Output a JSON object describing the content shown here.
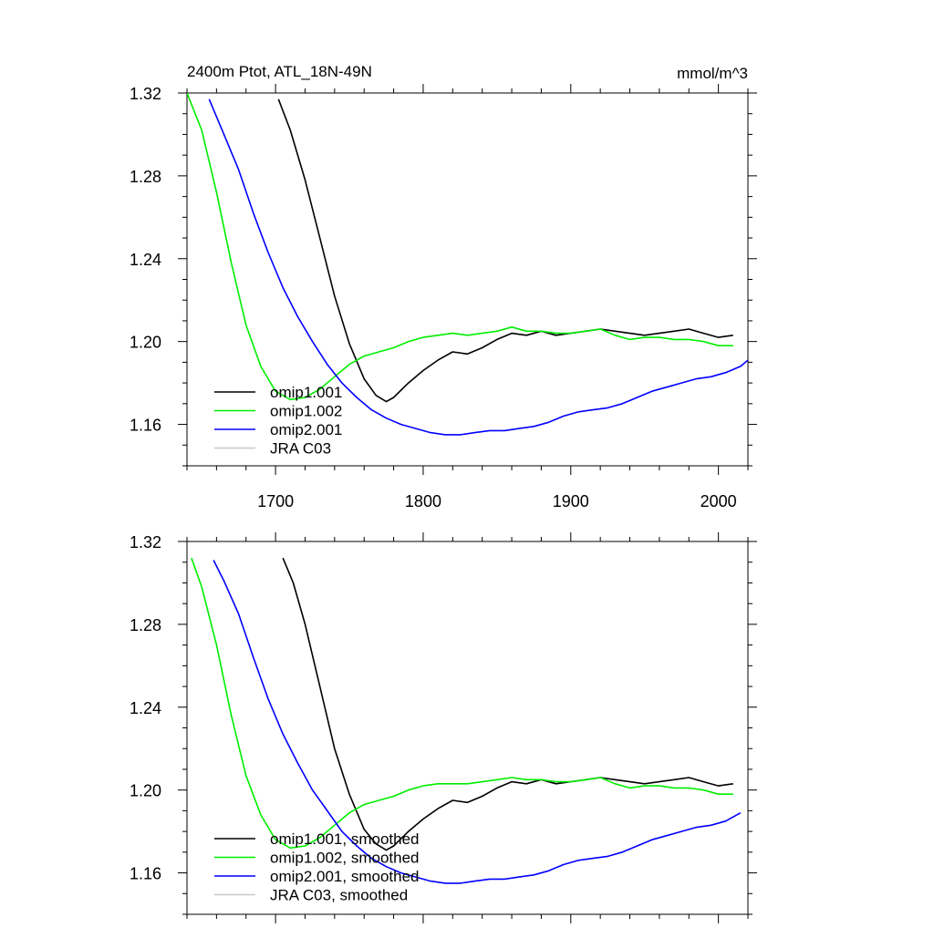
{
  "chart_data": [
    {
      "type": "line",
      "title": "2400m Ptot, ATL_18N-49N",
      "units": "mmol/m^3",
      "xlim": [
        1640,
        2020
      ],
      "ylim": [
        1.14,
        1.32
      ],
      "x_ticks": [
        1700,
        1800,
        1900,
        2000
      ],
      "y_ticks": [
        1.32,
        1.28,
        1.24,
        1.2,
        1.16
      ],
      "y_tick_labels": [
        "1.32",
        "1.28",
        "1.24",
        "1.20",
        "1.16"
      ],
      "grid": false,
      "legend_position": "bottom-left",
      "legend": [
        "omip1.001",
        "omip1.002",
        "omip2.001",
        "JRA C03"
      ],
      "series": [
        {
          "name": "omip1.001",
          "color": "#000000",
          "x": [
            1702,
            1710,
            1720,
            1730,
            1740,
            1750,
            1760,
            1768,
            1775,
            1780,
            1790,
            1800,
            1810,
            1820,
            1830,
            1840,
            1850,
            1860,
            1870,
            1880,
            1890,
            1900,
            1910,
            1920,
            1930,
            1940,
            1950,
            1960,
            1970,
            1980,
            1990,
            2000,
            2010
          ],
          "y": [
            1.317,
            1.302,
            1.278,
            1.25,
            1.222,
            1.199,
            1.182,
            1.174,
            1.171,
            1.173,
            1.18,
            1.186,
            1.191,
            1.195,
            1.194,
            1.197,
            1.201,
            1.204,
            1.203,
            1.205,
            1.203,
            1.204,
            1.205,
            1.206,
            1.205,
            1.204,
            1.203,
            1.204,
            1.205,
            1.206,
            1.204,
            1.202,
            1.203
          ]
        },
        {
          "name": "omip1.002",
          "color": "#00ee00",
          "x": [
            1640,
            1650,
            1660,
            1670,
            1680,
            1690,
            1700,
            1710,
            1720,
            1730,
            1740,
            1750,
            1760,
            1770,
            1780,
            1790,
            1800,
            1810,
            1820,
            1830,
            1840,
            1850,
            1860,
            1870,
            1880,
            1890,
            1900,
            1910,
            1920,
            1930,
            1940,
            1950,
            1960,
            1970,
            1980,
            1990,
            2000,
            2010
          ],
          "y": [
            1.32,
            1.302,
            1.272,
            1.238,
            1.208,
            1.188,
            1.176,
            1.172,
            1.173,
            1.177,
            1.183,
            1.189,
            1.193,
            1.195,
            1.197,
            1.2,
            1.202,
            1.203,
            1.204,
            1.203,
            1.204,
            1.205,
            1.207,
            1.205,
            1.205,
            1.204,
            1.204,
            1.205,
            1.206,
            1.203,
            1.201,
            1.202,
            1.202,
            1.201,
            1.201,
            1.2,
            1.198,
            1.198
          ]
        },
        {
          "name": "omip2.001",
          "color": "#0000ff",
          "x": [
            1655,
            1665,
            1675,
            1685,
            1695,
            1705,
            1715,
            1725,
            1735,
            1745,
            1755,
            1765,
            1775,
            1785,
            1795,
            1805,
            1815,
            1825,
            1835,
            1845,
            1855,
            1865,
            1875,
            1885,
            1895,
            1905,
            1915,
            1925,
            1935,
            1945,
            1955,
            1965,
            1975,
            1985,
            1995,
            2005,
            2015,
            2020
          ],
          "y": [
            1.317,
            1.3,
            1.283,
            1.262,
            1.243,
            1.226,
            1.212,
            1.2,
            1.189,
            1.18,
            1.173,
            1.167,
            1.163,
            1.16,
            1.158,
            1.156,
            1.155,
            1.155,
            1.156,
            1.157,
            1.157,
            1.158,
            1.159,
            1.161,
            1.164,
            1.166,
            1.167,
            1.168,
            1.17,
            1.173,
            1.176,
            1.178,
            1.18,
            1.182,
            1.183,
            1.185,
            1.188,
            1.191
          ]
        }
      ]
    },
    {
      "type": "line",
      "xlim": [
        1640,
        2020
      ],
      "ylim": [
        1.14,
        1.32
      ],
      "x_ticks": [
        1700,
        1800,
        1900,
        2000
      ],
      "y_ticks": [
        1.32,
        1.28,
        1.24,
        1.2,
        1.16
      ],
      "y_tick_labels": [
        "1.32",
        "1.28",
        "1.24",
        "1.20",
        "1.16"
      ],
      "grid": false,
      "legend_position": "bottom-left",
      "legend": [
        "omip1.001, smoothed",
        "omip1.002, smoothed",
        "omip2.001, smoothed",
        "JRA C03, smoothed"
      ],
      "series": [
        {
          "name": "omip1.001, smoothed",
          "color": "#000000",
          "x": [
            1705,
            1712,
            1720,
            1730,
            1740,
            1750,
            1760,
            1768,
            1775,
            1780,
            1790,
            1800,
            1810,
            1820,
            1830,
            1840,
            1850,
            1860,
            1870,
            1880,
            1890,
            1900,
            1910,
            1920,
            1930,
            1940,
            1950,
            1960,
            1970,
            1980,
            1990,
            2000,
            2010
          ],
          "y": [
            1.312,
            1.3,
            1.28,
            1.25,
            1.22,
            1.198,
            1.181,
            1.174,
            1.171,
            1.173,
            1.18,
            1.186,
            1.191,
            1.195,
            1.194,
            1.197,
            1.201,
            1.204,
            1.203,
            1.205,
            1.203,
            1.204,
            1.205,
            1.206,
            1.205,
            1.204,
            1.203,
            1.204,
            1.205,
            1.206,
            1.204,
            1.202,
            1.203
          ]
        },
        {
          "name": "omip1.002, smoothed",
          "color": "#00ee00",
          "x": [
            1643,
            1650,
            1660,
            1670,
            1680,
            1690,
            1700,
            1710,
            1720,
            1730,
            1740,
            1750,
            1760,
            1770,
            1780,
            1790,
            1800,
            1810,
            1820,
            1830,
            1840,
            1850,
            1860,
            1870,
            1880,
            1890,
            1900,
            1910,
            1920,
            1930,
            1940,
            1950,
            1960,
            1970,
            1980,
            1990,
            2000,
            2010
          ],
          "y": [
            1.312,
            1.298,
            1.27,
            1.236,
            1.207,
            1.188,
            1.176,
            1.172,
            1.173,
            1.177,
            1.183,
            1.189,
            1.193,
            1.195,
            1.197,
            1.2,
            1.202,
            1.203,
            1.203,
            1.203,
            1.204,
            1.205,
            1.206,
            1.205,
            1.205,
            1.204,
            1.204,
            1.205,
            1.206,
            1.203,
            1.201,
            1.202,
            1.202,
            1.201,
            1.201,
            1.2,
            1.198,
            1.198
          ]
        },
        {
          "name": "omip2.001, smoothed",
          "color": "#0000ff",
          "x": [
            1658,
            1665,
            1675,
            1685,
            1695,
            1705,
            1715,
            1725,
            1735,
            1745,
            1755,
            1765,
            1775,
            1785,
            1795,
            1805,
            1815,
            1825,
            1835,
            1845,
            1855,
            1865,
            1875,
            1885,
            1895,
            1905,
            1915,
            1925,
            1935,
            1945,
            1955,
            1965,
            1975,
            1985,
            1995,
            2005,
            2015
          ],
          "y": [
            1.311,
            1.301,
            1.285,
            1.264,
            1.244,
            1.227,
            1.213,
            1.2,
            1.19,
            1.18,
            1.173,
            1.167,
            1.163,
            1.16,
            1.158,
            1.156,
            1.155,
            1.155,
            1.156,
            1.157,
            1.157,
            1.158,
            1.159,
            1.161,
            1.164,
            1.166,
            1.167,
            1.168,
            1.17,
            1.173,
            1.176,
            1.178,
            1.18,
            1.182,
            1.183,
            1.185,
            1.189
          ]
        }
      ]
    }
  ]
}
